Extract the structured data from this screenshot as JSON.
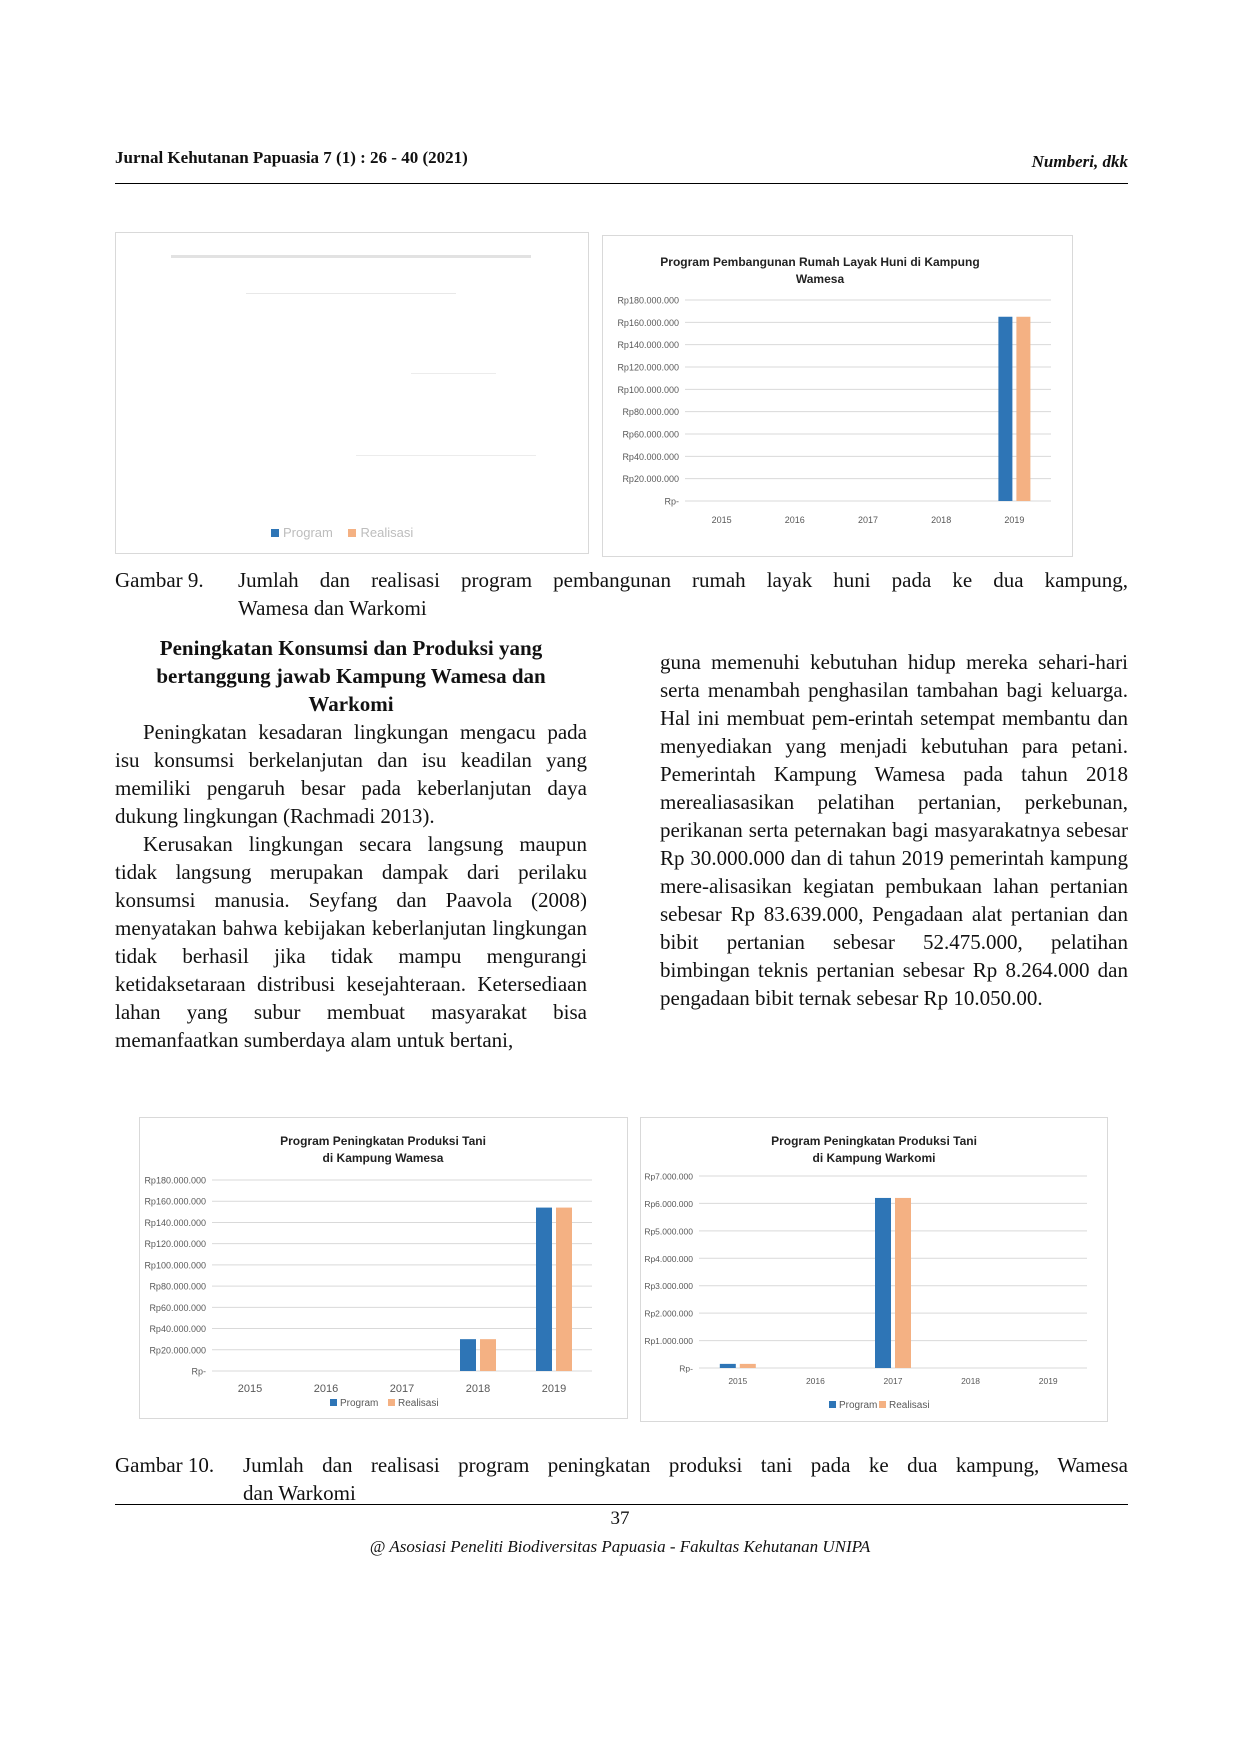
{
  "header": {
    "journal": "Jurnal Kehutanan Papuasia 7 (1) : 26 - 40 (2021)",
    "authors": "Numberi,  dkk"
  },
  "fig9_left": {
    "legend_program": "Program",
    "legend_realisasi": "Realisasi"
  },
  "colors": {
    "program": "#2e75b6",
    "realisasi": "#f4b183",
    "grid": "#d9d9d9",
    "axis_text": "#595959"
  },
  "chart_data": [
    {
      "type": "bar",
      "title": "Program Pembangunan Rumah Layak Huni di Kampung Wamesa",
      "title_lines": [
        "Program Pembangunan Rumah Layak Huni di Kampung",
        "Wamesa"
      ],
      "categories": [
        "2015",
        "2016",
        "2017",
        "2018",
        "2019"
      ],
      "series": [
        {
          "name": "Program",
          "values": [
            0,
            0,
            0,
            0,
            165000000
          ]
        },
        {
          "name": "Realisasi",
          "values": [
            0,
            0,
            0,
            0,
            165000000
          ]
        }
      ],
      "ylim": [
        0,
        180000000
      ],
      "yticks": [
        "Rp-",
        "Rp20.000.000",
        "Rp40.000.000",
        "Rp60.000.000",
        "Rp80.000.000",
        "Rp100.000.000",
        "Rp120.000.000",
        "Rp140.000.000",
        "Rp160.000.000",
        "Rp180.000.000"
      ],
      "legend": "none",
      "grid": true
    },
    {
      "type": "bar",
      "title": "Program Peningkatan Produksi Tani di Kampung Wamesa",
      "title_lines": [
        "Program Peningkatan Produksi Tani",
        "di Kampung Wamesa"
      ],
      "categories": [
        "2015",
        "2016",
        "2017",
        "2018",
        "2019"
      ],
      "series": [
        {
          "name": "Program",
          "values": [
            0,
            0,
            0,
            30000000,
            154000000
          ]
        },
        {
          "name": "Realisasi",
          "values": [
            0,
            0,
            0,
            30000000,
            154000000
          ]
        }
      ],
      "ylim": [
        0,
        180000000
      ],
      "yticks": [
        "Rp-",
        "Rp20.000.000",
        "Rp40.000.000",
        "Rp60.000.000",
        "Rp80.000.000",
        "Rp100.000.000",
        "Rp120.000.000",
        "Rp140.000.000",
        "Rp160.000.000",
        "Rp180.000.000"
      ],
      "legend": "bottom",
      "legend_labels": [
        "Program",
        "Realisasi"
      ],
      "grid": true
    },
    {
      "type": "bar",
      "title": "Program Peningkatan Produksi Tani di Kampung Warkomi",
      "title_lines": [
        "Program Peningkatan Produksi Tani",
        "di Kampung Warkomi"
      ],
      "categories": [
        "2015",
        "2016",
        "2017",
        "2018",
        "2019"
      ],
      "series": [
        {
          "name": "Program",
          "values": [
            150000,
            0,
            6200000,
            0,
            0
          ]
        },
        {
          "name": "Realisasi",
          "values": [
            150000,
            0,
            6200000,
            0,
            0
          ]
        }
      ],
      "ylim": [
        0,
        7000000
      ],
      "yticks": [
        "Rp-",
        "Rp1.000.000",
        "Rp2.000.000",
        "Rp3.000.000",
        "Rp4.000.000",
        "Rp5.000.000",
        "Rp6.000.000",
        "Rp7.000.000"
      ],
      "legend": "bottom",
      "legend_labels": [
        "Program",
        "Realisasi"
      ],
      "grid": true
    }
  ],
  "fig9_caption": {
    "label": "Gambar 9.",
    "line1": "Jumlah dan realisasi program pembangunan rumah layak huni pada ke dua kampung,",
    "line2": "Wamesa dan Warkomi"
  },
  "section": {
    "title_lines": [
      "Peningkatan Konsumsi dan Produksi yang",
      "bertanggung jawab Kampung Wamesa dan",
      "Warkomi"
    ]
  },
  "left_col": {
    "p1": "Peningkatan kesadaran lingkungan mengacu pada isu konsumsi berkelanjutan dan isu keadilan yang memiliki pengaruh besar pada keberlanjutan daya dukung lingkungan (Rachmadi 2013).",
    "p2": "Kerusakan lingkungan secara langsung maupun tidak langsung merupakan dampak dari perilaku konsumsi manusia. Seyfang dan Paavola (2008) menyatakan bahwa kebijakan keberlanjutan lingkungan tidak berhasil jika tidak mampu mengurangi ketidaksetaraan distribusi kesejahteraan. Ketersediaan lahan yang subur membuat masyarakat bisa memanfaatkan sumberdaya alam untuk bertani,"
  },
  "right_col": {
    "p1": "guna memenuhi kebutuhan hidup mereka sehari-hari serta menambah penghasilan tambahan bagi keluarga. Hal ini membuat pem-erintah setempat membantu dan menyediakan yang menjadi kebutuhan para petani. Pemerintah Kampung Wamesa pada tahun 2018 merealiasasikan pelatihan pertanian, perkebunan, perikanan serta peternakan bagi masyarakatnya sebesar Rp 30.000.000 dan di tahun 2019 pemerintah kampung mere-alisasikan kegiatan pembukaan lahan pertanian sebesar Rp 83.639.000, Pengadaan alat pertanian dan bibit pertanian sebesar 52.475.000, pelatihan bimbingan teknis pertanian sebesar Rp 8.264.000 dan pengadaan bibit ternak sebesar Rp 10.050.00."
  },
  "fig10_caption": {
    "label": "Gambar 10.",
    "line1": "Jumlah dan realisasi program peningkatan produksi tani pada ke dua kampung, Wamesa",
    "line2": "dan Warkomi"
  },
  "footer": {
    "page": "37",
    "text": "@ Asosiasi Peneliti Biodiversitas Papuasia - Fakultas Kehutanan UNIPA"
  }
}
